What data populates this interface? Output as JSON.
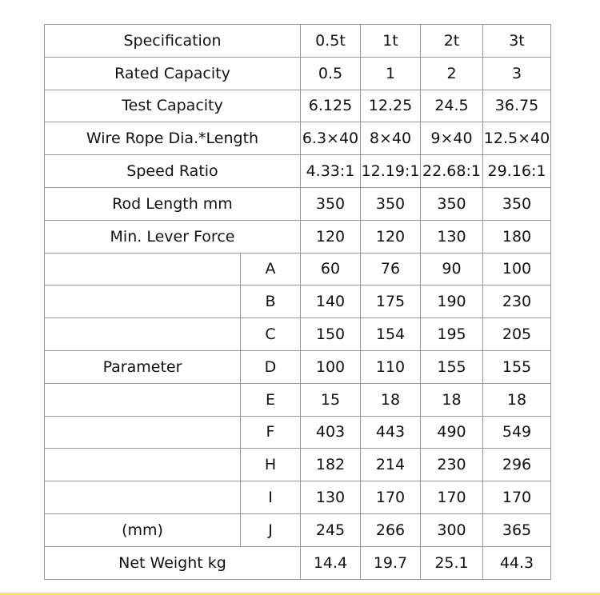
{
  "header": {
    "label": "Specification",
    "models": [
      "0.5t",
      "1t",
      "2t",
      "3t"
    ]
  },
  "rows": [
    {
      "label": "Rated Capacity",
      "values": [
        "0.5",
        "1",
        "2",
        "3"
      ]
    },
    {
      "label": "Test Capacity",
      "values": [
        "6.125",
        "12.25",
        "24.5",
        "36.75"
      ]
    },
    {
      "label": "Wire Rope Dia.*Length",
      "values": [
        "6.3×40",
        "8×40",
        "9×40",
        "12.5×40"
      ]
    },
    {
      "label": "Speed Ratio",
      "values": [
        "4.33:1",
        "12.19:1",
        "22.68:1",
        "29.16:1"
      ]
    },
    {
      "label": "Rod Length mm",
      "values": [
        "350",
        "350",
        "350",
        "350"
      ]
    },
    {
      "label": "Min. Lever Force",
      "values": [
        "120",
        "120",
        "130",
        "180"
      ]
    }
  ],
  "parameter": {
    "label": "Parameter",
    "unit": "(mm)",
    "rows": [
      {
        "key": "A",
        "values": [
          "60",
          "76",
          "90",
          "100"
        ]
      },
      {
        "key": "B",
        "values": [
          "140",
          "175",
          "190",
          "230"
        ]
      },
      {
        "key": "C",
        "values": [
          "150",
          "154",
          "195",
          "205"
        ]
      },
      {
        "key": "D",
        "values": [
          "100",
          "110",
          "155",
          "155"
        ]
      },
      {
        "key": "E",
        "values": [
          "15",
          "18",
          "18",
          "18"
        ]
      },
      {
        "key": "F",
        "values": [
          "403",
          "443",
          "490",
          "549"
        ]
      },
      {
        "key": "H",
        "values": [
          "182",
          "214",
          "230",
          "296"
        ]
      },
      {
        "key": "I",
        "values": [
          "130",
          "170",
          "170",
          "170"
        ]
      },
      {
        "key": "J",
        "values": [
          "245",
          "266",
          "300",
          "365"
        ]
      }
    ]
  },
  "net_weight": {
    "label": "Net Weight kg",
    "values": [
      "14.4",
      "19.7",
      "25.1",
      "44.3"
    ]
  }
}
